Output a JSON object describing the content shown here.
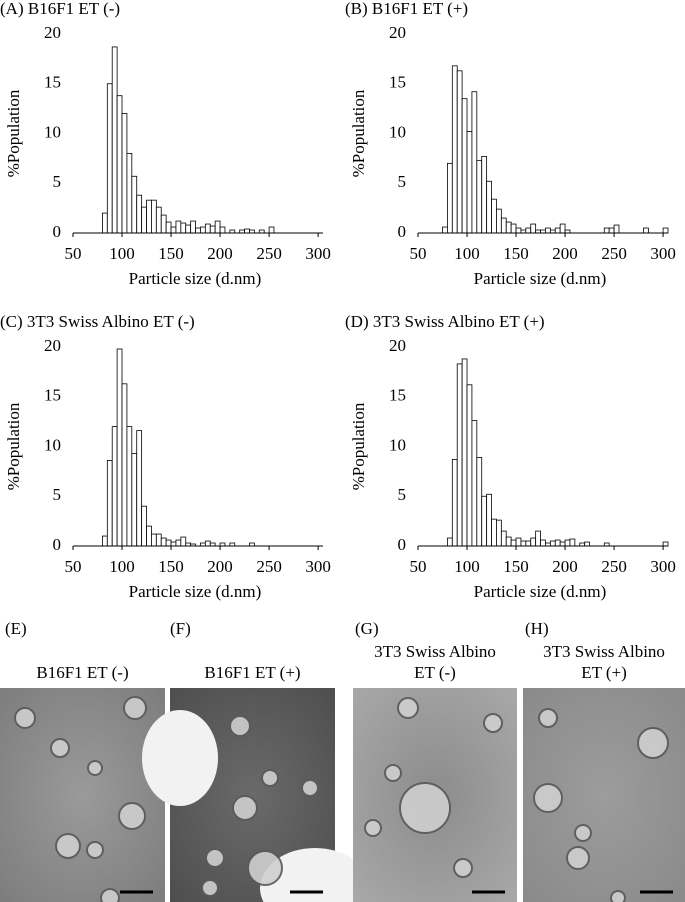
{
  "chart_data": [
    {
      "type": "histogram",
      "title": "(A) B16F1 ET (-)",
      "xlabel": "Particle size (d.nm)",
      "ylabel": "%Population",
      "bins": [
        80,
        85,
        90,
        95,
        100,
        105,
        110,
        115,
        120,
        125,
        130,
        135,
        140,
        145,
        150,
        155,
        160,
        165,
        170,
        175,
        180,
        185,
        190,
        195,
        200,
        205,
        210,
        215,
        220,
        225,
        230,
        235,
        240,
        245,
        250,
        255
      ],
      "values": [
        2,
        15,
        18.7,
        13.8,
        12,
        8,
        5.7,
        3.8,
        2.6,
        3.3,
        3.3,
        2.6,
        1.8,
        1.1,
        0.6,
        1.2,
        1,
        0.8,
        1.2,
        0.5,
        0.6,
        0.9,
        0.7,
        1.2,
        0.6,
        0,
        0.3,
        0,
        0.3,
        0.4,
        0.3,
        0,
        0.3,
        0,
        0.6
      ],
      "xlim": [
        50,
        305
      ],
      "ylim": [
        0,
        20
      ],
      "xticks": [
        50,
        100,
        150,
        200,
        250,
        300
      ],
      "yticks": [
        0,
        5,
        10,
        15,
        20
      ],
      "color": "#ffffff"
    },
    {
      "type": "histogram",
      "title": "(B) B16F1 ET (+)",
      "xlabel": "Particle size (d.nm)",
      "ylabel": "%Population",
      "bins": [
        75,
        80,
        85,
        90,
        95,
        100,
        105,
        110,
        115,
        120,
        125,
        130,
        135,
        140,
        145,
        150,
        155,
        160,
        165,
        170,
        175,
        180,
        185,
        190,
        195,
        200,
        205,
        210,
        215,
        220,
        225,
        230,
        235,
        240,
        245,
        250,
        255,
        260,
        265,
        270,
        275,
        280,
        285,
        290,
        295,
        300,
        305
      ],
      "values": [
        0.6,
        7,
        16.8,
        16.3,
        13.5,
        10.2,
        14.2,
        7.3,
        7.7,
        5.2,
        3.4,
        2.4,
        1.5,
        1.1,
        0.9,
        0.5,
        0.3,
        0.5,
        0.9,
        0.3,
        0.3,
        0.5,
        0.3,
        0.5,
        0.9,
        0.3,
        0,
        0,
        0,
        0,
        0,
        0,
        0,
        0.5,
        0.5,
        0.8,
        0,
        0,
        0,
        0,
        0,
        0.5,
        0,
        0,
        0,
        0.5
      ],
      "xlim": [
        50,
        305
      ],
      "ylim": [
        0,
        20
      ],
      "xticks": [
        50,
        100,
        150,
        200,
        250,
        300
      ],
      "yticks": [
        0,
        5,
        10,
        15,
        20
      ],
      "color": "#ffffff"
    },
    {
      "type": "histogram",
      "title": "(C) 3T3 Swiss Albino ET (-)",
      "xlabel": "Particle size (d.nm)",
      "ylabel": "%Population",
      "bins": [
        80,
        85,
        90,
        95,
        100,
        105,
        110,
        115,
        120,
        125,
        130,
        135,
        140,
        145,
        150,
        155,
        160,
        165,
        170,
        175,
        180,
        185,
        190,
        195,
        200,
        205,
        210,
        215,
        220,
        225,
        230,
        235
      ],
      "values": [
        1,
        8.6,
        12,
        19.8,
        16.3,
        12,
        9.3,
        11.6,
        4,
        2,
        1.2,
        1.2,
        0.8,
        0.6,
        0.4,
        0.6,
        0.9,
        0.3,
        0.2,
        0,
        0.3,
        0.5,
        0.3,
        0,
        0.3,
        0,
        0.3,
        0,
        0,
        0,
        0.3
      ],
      "xlim": [
        50,
        305
      ],
      "ylim": [
        0,
        20
      ],
      "xticks": [
        50,
        100,
        150,
        200,
        250,
        300
      ],
      "yticks": [
        0,
        5,
        10,
        15,
        20
      ],
      "color": "#ffffff"
    },
    {
      "type": "histogram",
      "title": "(D) 3T3 Swiss Albino ET (+)",
      "xlabel": "Particle size (d.nm)",
      "ylabel": "%Population",
      "bins": [
        80,
        85,
        90,
        95,
        100,
        105,
        110,
        115,
        120,
        125,
        130,
        135,
        140,
        145,
        150,
        155,
        160,
        165,
        170,
        175,
        180,
        185,
        190,
        195,
        200,
        205,
        210,
        215,
        220,
        225,
        230,
        235,
        240,
        245,
        250,
        255,
        260,
        265,
        270,
        275,
        280,
        285,
        290,
        295,
        300,
        305
      ],
      "values": [
        0.8,
        8.7,
        18.3,
        18.8,
        16.2,
        12.6,
        8.9,
        5,
        5.2,
        2.7,
        2.6,
        1.5,
        0.9,
        0.6,
        0.8,
        0.5,
        0.5,
        0.8,
        1.5,
        0.6,
        0.3,
        0.5,
        0.6,
        0.4,
        0.6,
        0.7,
        0,
        0.3,
        0.4,
        0,
        0,
        0,
        0.3,
        0,
        0,
        0,
        0,
        0,
        0,
        0,
        0,
        0,
        0,
        0,
        0.4
      ],
      "xlim": [
        50,
        305
      ],
      "ylim": [
        0,
        20
      ],
      "xticks": [
        50,
        100,
        150,
        200,
        250,
        300
      ],
      "yticks": [
        0,
        5,
        10,
        15,
        20
      ],
      "color": "#ffffff"
    }
  ],
  "panels": [
    {
      "label": "(E)",
      "caption": [
        "B16F1 ET (-)"
      ]
    },
    {
      "label": "(F)",
      "caption": [
        "B16F1 ET (+)"
      ]
    },
    {
      "label": "(G)",
      "caption": [
        "3T3 Swiss Albino",
        "ET (-)"
      ]
    },
    {
      "label": "(H)",
      "caption": [
        "3T3 Swiss Albino",
        "ET (+)"
      ]
    }
  ]
}
